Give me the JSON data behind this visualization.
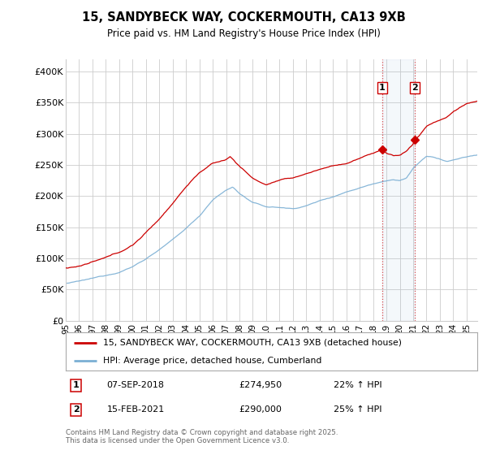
{
  "title": "15, SANDYBECK WAY, COCKERMOUTH, CA13 9XB",
  "subtitle": "Price paid vs. HM Land Registry's House Price Index (HPI)",
  "ylabel_ticks": [
    "£0",
    "£50K",
    "£100K",
    "£150K",
    "£200K",
    "£250K",
    "£300K",
    "£350K",
    "£400K"
  ],
  "ytick_values": [
    0,
    50000,
    100000,
    150000,
    200000,
    250000,
    300000,
    350000,
    400000
  ],
  "ylim": [
    0,
    420000
  ],
  "xlim_start": 1995.0,
  "xlim_end": 2025.8,
  "sale1_date": 2018.67,
  "sale1_price": 274950,
  "sale1_label": "1",
  "sale2_date": 2021.12,
  "sale2_price": 290000,
  "sale2_label": "2",
  "line_color_house": "#cc0000",
  "line_color_hpi": "#7bafd4",
  "vline_color": "#cc0000",
  "vline_alpha": 0.5,
  "grid_color": "#cccccc",
  "background_color": "#ffffff",
  "legend_house": "15, SANDYBECK WAY, COCKERMOUTH, CA13 9XB (detached house)",
  "legend_hpi": "HPI: Average price, detached house, Cumberland",
  "footer": "Contains HM Land Registry data © Crown copyright and database right 2025.\nThis data is licensed under the Open Government Licence v3.0.",
  "xtick_labels": [
    "95",
    "96",
    "97",
    "98",
    "99",
    "00",
    "01",
    "02",
    "03",
    "04",
    "05",
    "06",
    "07",
    "08",
    "09",
    "10",
    "11",
    "12",
    "13",
    "14",
    "15",
    "16",
    "17",
    "18",
    "19",
    "20",
    "21",
    "22",
    "23",
    "24",
    "25"
  ],
  "xticks": [
    1995,
    1996,
    1997,
    1998,
    1999,
    2000,
    2001,
    2002,
    2003,
    2004,
    2005,
    2006,
    2007,
    2008,
    2009,
    2010,
    2011,
    2012,
    2013,
    2014,
    2015,
    2016,
    2017,
    2018,
    2019,
    2020,
    2021,
    2022,
    2023,
    2024,
    2025
  ]
}
